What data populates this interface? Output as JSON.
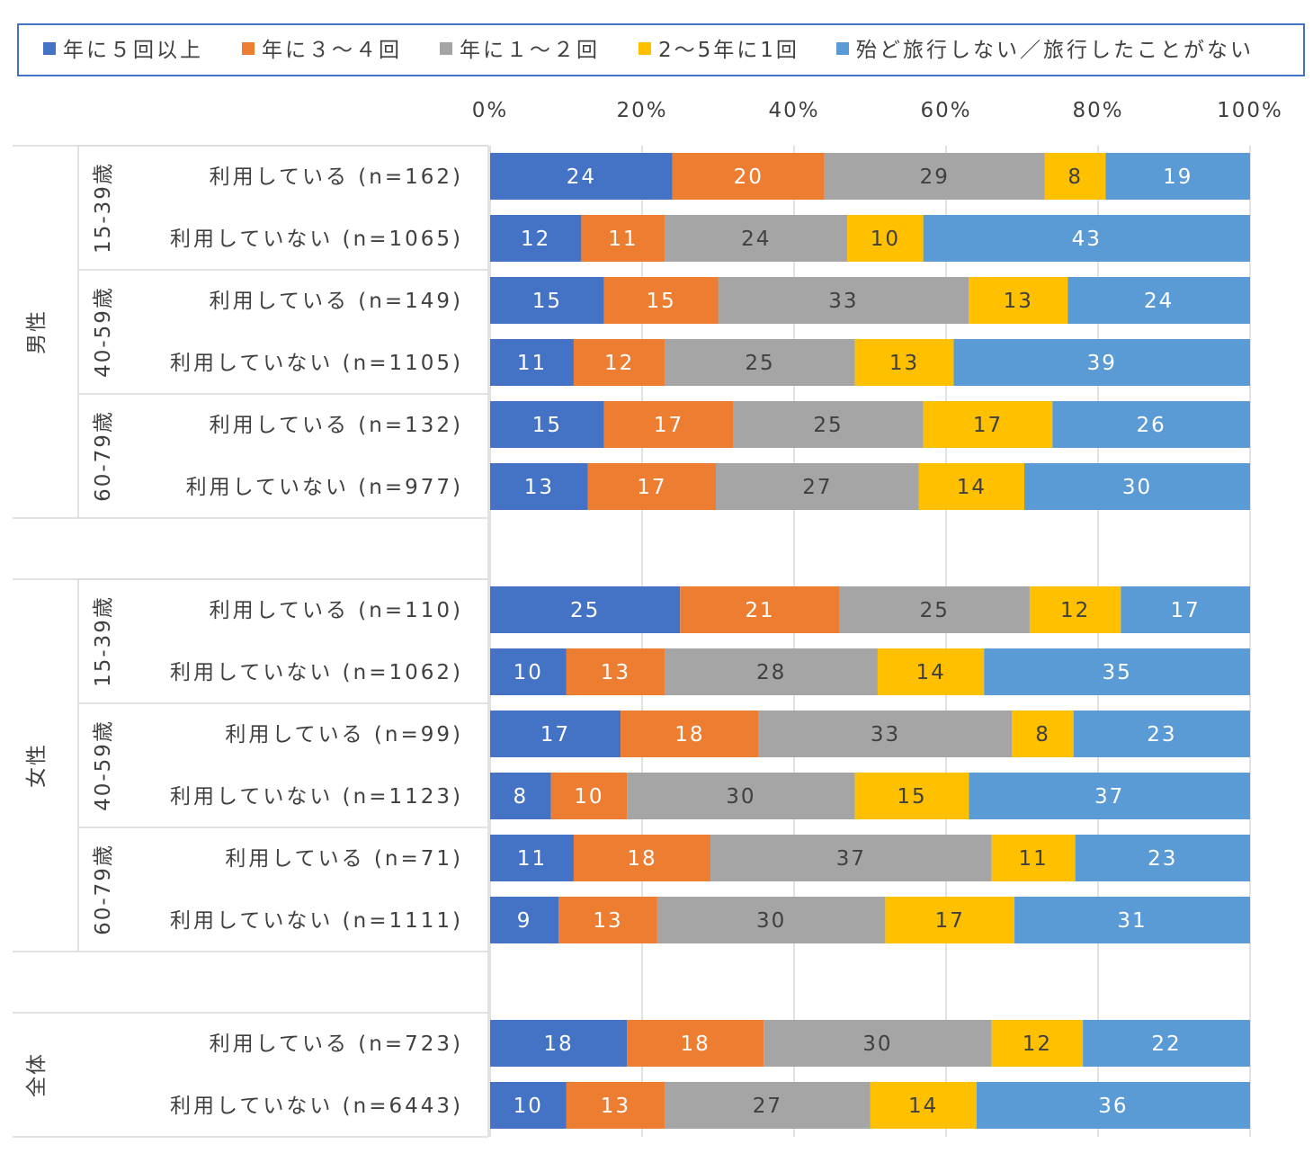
{
  "chart_data": {
    "type": "bar",
    "orientation": "horizontal",
    "stacked": "percent",
    "xlim": [
      0,
      100
    ],
    "x_ticks": [
      "0%",
      "20%",
      "40%",
      "60%",
      "80%",
      "100%"
    ],
    "grid": true,
    "legend_position": "top",
    "series": [
      {
        "name": "年に５回以上",
        "color": "#4472C4"
      },
      {
        "name": "年に３～４回",
        "color": "#ED7D31"
      },
      {
        "name": "年に１～２回",
        "color": "#A5A5A5"
      },
      {
        "name": "2～5年に1回",
        "color": "#FFC000"
      },
      {
        "name": "殆ど旅行しない／旅行したことがない",
        "color": "#5B9BD5"
      }
    ],
    "sections": [
      {
        "label": "男性",
        "groups": [
          {
            "label": "15-39歳",
            "rows": [
              {
                "label": "利用している (n=162)",
                "values": [
                  24,
                  20,
                  29,
                  8,
                  19
                ]
              },
              {
                "label": "利用していない (n=1065)",
                "values": [
                  12,
                  11,
                  24,
                  10,
                  43
                ]
              }
            ]
          },
          {
            "label": "40-59歳",
            "rows": [
              {
                "label": "利用している (n=149)",
                "values": [
                  15,
                  15,
                  33,
                  13,
                  24
                ]
              },
              {
                "label": "利用していない (n=1105)",
                "values": [
                  11,
                  12,
                  25,
                  13,
                  39
                ]
              }
            ]
          },
          {
            "label": "60-79歳",
            "rows": [
              {
                "label": "利用している (n=132)",
                "values": [
                  15,
                  17,
                  25,
                  17,
                  26
                ]
              },
              {
                "label": "利用していない (n=977)",
                "values": [
                  13,
                  17,
                  27,
                  14,
                  30
                ]
              }
            ]
          }
        ]
      },
      {
        "label": "女性",
        "groups": [
          {
            "label": "15-39歳",
            "rows": [
              {
                "label": "利用している (n=110)",
                "values": [
                  25,
                  21,
                  25,
                  12,
                  17
                ]
              },
              {
                "label": "利用していない (n=1062)",
                "values": [
                  10,
                  13,
                  28,
                  14,
                  35
                ]
              }
            ]
          },
          {
            "label": "40-59歳",
            "rows": [
              {
                "label": "利用している (n=99)",
                "values": [
                  17,
                  18,
                  33,
                  8,
                  23
                ]
              },
              {
                "label": "利用していない (n=1123)",
                "values": [
                  8,
                  10,
                  30,
                  15,
                  37
                ]
              }
            ]
          },
          {
            "label": "60-79歳",
            "rows": [
              {
                "label": "利用している (n=71)",
                "values": [
                  11,
                  18,
                  37,
                  11,
                  23
                ]
              },
              {
                "label": "利用していない (n=1111)",
                "values": [
                  9,
                  13,
                  30,
                  17,
                  31
                ]
              }
            ]
          }
        ]
      },
      {
        "label": "全体",
        "groups": [
          {
            "label": "",
            "rows": [
              {
                "label": "利用している (n=723)",
                "values": [
                  18,
                  18,
                  30,
                  12,
                  22
                ]
              },
              {
                "label": "利用していない (n=6443)",
                "values": [
                  10,
                  13,
                  27,
                  14,
                  36
                ]
              }
            ]
          }
        ]
      }
    ]
  }
}
